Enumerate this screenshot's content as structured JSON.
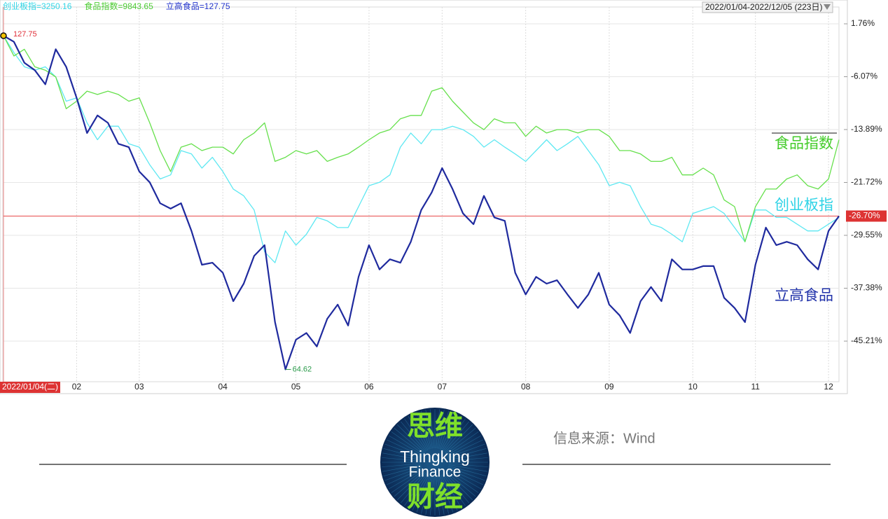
{
  "chart_data": {
    "type": "line",
    "header_labels": [
      {
        "text": "创业板指=3250.16",
        "color": "#33d6e6"
      },
      {
        "text": "食品指数=9843.65",
        "color": "#4ccc33"
      },
      {
        "text": "立高食品=127.75",
        "color": "#2233cc"
      }
    ],
    "date_range": "2022/01/04-2022/12/05 (223日)",
    "categories": [
      "2022/01/04(二)",
      null,
      null,
      null,
      null,
      null,
      null,
      "02",
      null,
      null,
      null,
      null,
      null,
      "03",
      null,
      null,
      null,
      null,
      null,
      null,
      null,
      "04",
      null,
      null,
      null,
      null,
      null,
      null,
      "05",
      null,
      null,
      null,
      null,
      null,
      null,
      "06",
      null,
      null,
      null,
      null,
      null,
      null,
      "07",
      null,
      null,
      null,
      null,
      null,
      null,
      null,
      "08",
      null,
      null,
      null,
      null,
      null,
      null,
      null,
      "09",
      null,
      null,
      null,
      null,
      null,
      null,
      null,
      "10",
      null,
      null,
      null,
      null,
      null,
      "11",
      null,
      null,
      null,
      null,
      null,
      null,
      "12",
      null
    ],
    "series": [
      {
        "name": "创业板指",
        "color": "#5ee8f2",
        "label_color": "#2fd3e6",
        "values": [
          0,
          -2.5,
          -4.6,
          -5.1,
          -4.6,
          -6.1,
          -9.7,
          -9.2,
          -12.9,
          -15.4,
          -13.4,
          -13.4,
          -16.0,
          -16.5,
          -19.1,
          -21.2,
          -20.6,
          -17.0,
          -17.5,
          -19.6,
          -18.0,
          -20.1,
          -22.7,
          -23.7,
          -25.8,
          -32.0,
          -33.6,
          -28.9,
          -31.0,
          -29.4,
          -26.9,
          -27.4,
          -28.4,
          -28.4,
          -25.3,
          -22.2,
          -21.7,
          -20.6,
          -16.5,
          -14.4,
          -16.0,
          -13.9,
          -13.9,
          -13.4,
          -13.9,
          -14.9,
          -16.5,
          -15.4,
          -16.5,
          -17.5,
          -18.6,
          -17.0,
          -15.4,
          -17.0,
          -16.0,
          -14.9,
          -17.0,
          -19.1,
          -22.2,
          -21.7,
          -22.2,
          -25.3,
          -27.9,
          -28.4,
          -29.4,
          -30.5,
          -26.3,
          -25.8,
          -25.3,
          -26.3,
          -28.4,
          -30.5,
          -25.8,
          -25.8,
          -26.9,
          -26.9,
          -27.9,
          -28.9,
          -28.9,
          -27.9,
          -26.9
        ]
      },
      {
        "name": "食品指数",
        "color": "#66e04c",
        "label_color": "#44cc2a",
        "values": [
          0,
          -3.0,
          -2.0,
          -4.6,
          -5.1,
          -6.1,
          -10.8,
          -9.7,
          -8.2,
          -8.7,
          -8.2,
          -8.7,
          -9.7,
          -9.2,
          -12.9,
          -17.0,
          -20.1,
          -16.5,
          -16.0,
          -17.0,
          -16.5,
          -16.5,
          -17.5,
          -15.4,
          -14.4,
          -12.9,
          -18.6,
          -18.0,
          -17.0,
          -17.5,
          -17.0,
          -18.6,
          -18.0,
          -17.5,
          -16.5,
          -15.4,
          -14.4,
          -13.9,
          -12.3,
          -11.8,
          -11.8,
          -8.2,
          -7.7,
          -9.7,
          -11.3,
          -12.9,
          -13.9,
          -12.3,
          -12.9,
          -12.9,
          -14.9,
          -13.4,
          -14.4,
          -13.9,
          -13.9,
          -14.4,
          -13.9,
          -13.9,
          -14.9,
          -17.0,
          -17.0,
          -17.5,
          -18.6,
          -18.6,
          -18.0,
          -20.6,
          -20.6,
          -19.6,
          -20.6,
          -24.3,
          -25.3,
          -30.5,
          -25.3,
          -22.7,
          -22.7,
          -21.2,
          -20.6,
          -22.2,
          -22.7,
          -21.2,
          -15.4
        ]
      },
      {
        "name": "立高食品",
        "color": "#1f2a9e",
        "label_color": "#2233aa",
        "values": [
          0,
          -0.9,
          -4.0,
          -5.1,
          -7.2,
          -2.0,
          -4.6,
          -9.2,
          -14.4,
          -11.8,
          -12.9,
          -16.0,
          -16.5,
          -20.1,
          -21.7,
          -24.8,
          -25.6,
          -24.8,
          -28.9,
          -33.9,
          -33.6,
          -35.1,
          -39.3,
          -36.7,
          -32.6,
          -31.0,
          -42.4,
          -49.4,
          -45.0,
          -44.0,
          -46.0,
          -41.9,
          -39.8,
          -42.9,
          -35.7,
          -31.0,
          -34.6,
          -33.1,
          -33.6,
          -30.5,
          -25.8,
          -23.2,
          -19.6,
          -22.7,
          -26.3,
          -27.9,
          -23.7,
          -26.9,
          -27.4,
          -35.1,
          -38.3,
          -35.7,
          -36.7,
          -36.2,
          -38.3,
          -40.3,
          -38.3,
          -35.1,
          -39.8,
          -41.4,
          -44.0,
          -39.3,
          -37.2,
          -39.3,
          -33.1,
          -34.6,
          -34.6,
          -34.1,
          -34.1,
          -38.8,
          -40.3,
          -42.4,
          -33.9,
          -28.4,
          -31.0,
          -30.5,
          -31.0,
          -33.1,
          -34.6,
          -28.9,
          -26.7
        ]
      }
    ],
    "annotations": [
      {
        "text": "127.75",
        "series": 2,
        "index": 0,
        "color": "#e0303a"
      },
      {
        "text": "64.62",
        "series": 2,
        "index": 27,
        "color": "#2a9a4a"
      }
    ],
    "reference_line": {
      "value": -26.7,
      "label": "-26.70%",
      "color": "#e84a4a"
    },
    "ylim": [
      -51.22,
      4.25
    ],
    "yticks": [
      {
        "value": 1.76,
        "label": "1.76%"
      },
      {
        "value": -6.07,
        "label": "-6.07%"
      },
      {
        "value": -13.89,
        "label": "-13.89%"
      },
      {
        "value": -21.72,
        "label": "-21.72%"
      },
      {
        "value": -29.55,
        "label": "-29.55%"
      },
      {
        "value": -37.38,
        "label": "-37.38%"
      },
      {
        "value": -45.21,
        "label": "-45.21%"
      }
    ],
    "grid": true
  },
  "footer": {
    "logo_top": "思维",
    "logo_line1": "Thingking",
    "logo_line2": "Finance",
    "logo_bottom": "财经",
    "source": "信息来源：Wind"
  }
}
